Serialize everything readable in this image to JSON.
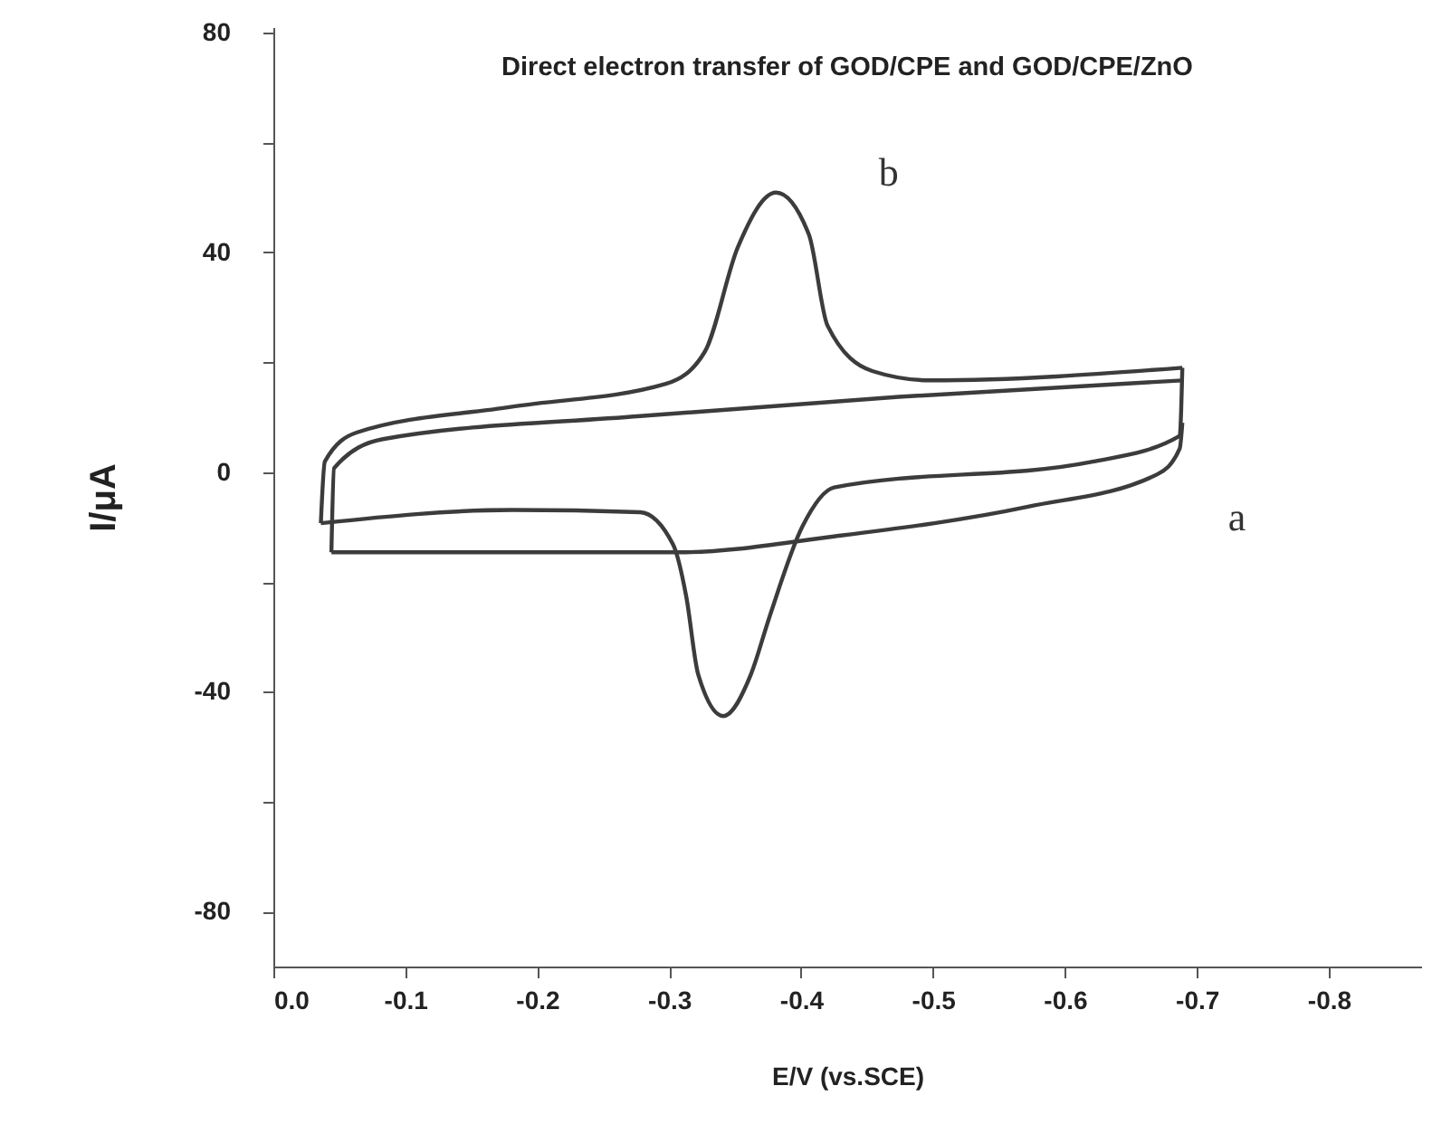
{
  "chart_data": {
    "type": "line",
    "title": "Direct electron transfer of GOD/CPE and GOD/CPE/ZnO",
    "xlabel": "E/V (vs.SCE)",
    "ylabel": "I/μA",
    "xlim": [
      0,
      -0.87
    ],
    "xticks": [
      {
        "value": 0,
        "label": "0.0"
      },
      -0.1,
      -0.2,
      -0.3,
      -0.4,
      -0.5,
      -0.6,
      -0.7,
      -0.8
    ],
    "ylim": [
      -90,
      81
    ],
    "yticks": [
      -80,
      {
        "value": -60,
        "label": null
      },
      -40,
      {
        "value": -20,
        "label": null
      },
      0,
      {
        "value": 20,
        "label": null
      },
      40,
      {
        "value": 60,
        "label": null
      },
      80
    ],
    "grid": false,
    "legend": false,
    "marker": "none",
    "line_style": "solid",
    "series": [
      {
        "color": "#3c3c3c",
        "x": [
          -0.036,
          -0.039,
          -0.063,
          -0.181,
          -0.298,
          -0.327,
          -0.352,
          -0.381,
          -0.406,
          -0.42,
          -0.454,
          -0.498,
          -0.689
        ],
        "values": [
          -9.3,
          1.9,
          7.2,
          11.9,
          16.1,
          21.9,
          40.9,
          50.9,
          43.2,
          26.7,
          18.4,
          16.7,
          19.0
        ]
      },
      {
        "color": "#3c3c3c",
        "x": [
          -0.689,
          -0.687,
          -0.621,
          -0.425,
          -0.401,
          -0.376,
          -0.362,
          -0.341,
          -0.322,
          -0.313,
          -0.303,
          -0.278,
          -0.181,
          -0.036
        ],
        "values": [
          19.0,
          6.6,
          1.9,
          -2.8,
          -9.9,
          -26.4,
          -36.8,
          -44.4,
          -36.8,
          -22.7,
          -13.2,
          -7.3,
          -6.9,
          -9.3
        ]
      },
      {
        "color": "#3c3c3c",
        "x": [
          -0.044,
          -0.046,
          -0.083,
          -0.278,
          -0.474,
          -0.689
        ],
        "values": [
          -14.6,
          0.7,
          6.0,
          10.2,
          13.7,
          16.7
        ]
      },
      {
        "color": "#3c3c3c",
        "x": [
          -0.689,
          -0.687,
          -0.67,
          -0.572,
          -0.425,
          -0.308,
          -0.044
        ],
        "values": [
          9.0,
          4.3,
          -0.4,
          -6.3,
          -11.7,
          -14.6,
          -14.6
        ]
      }
    ],
    "annotations": [
      {
        "text": "b",
        "x": -0.406,
        "y": 43.2
      },
      {
        "text": "a",
        "x": -0.67,
        "y": -0.4
      }
    ]
  }
}
